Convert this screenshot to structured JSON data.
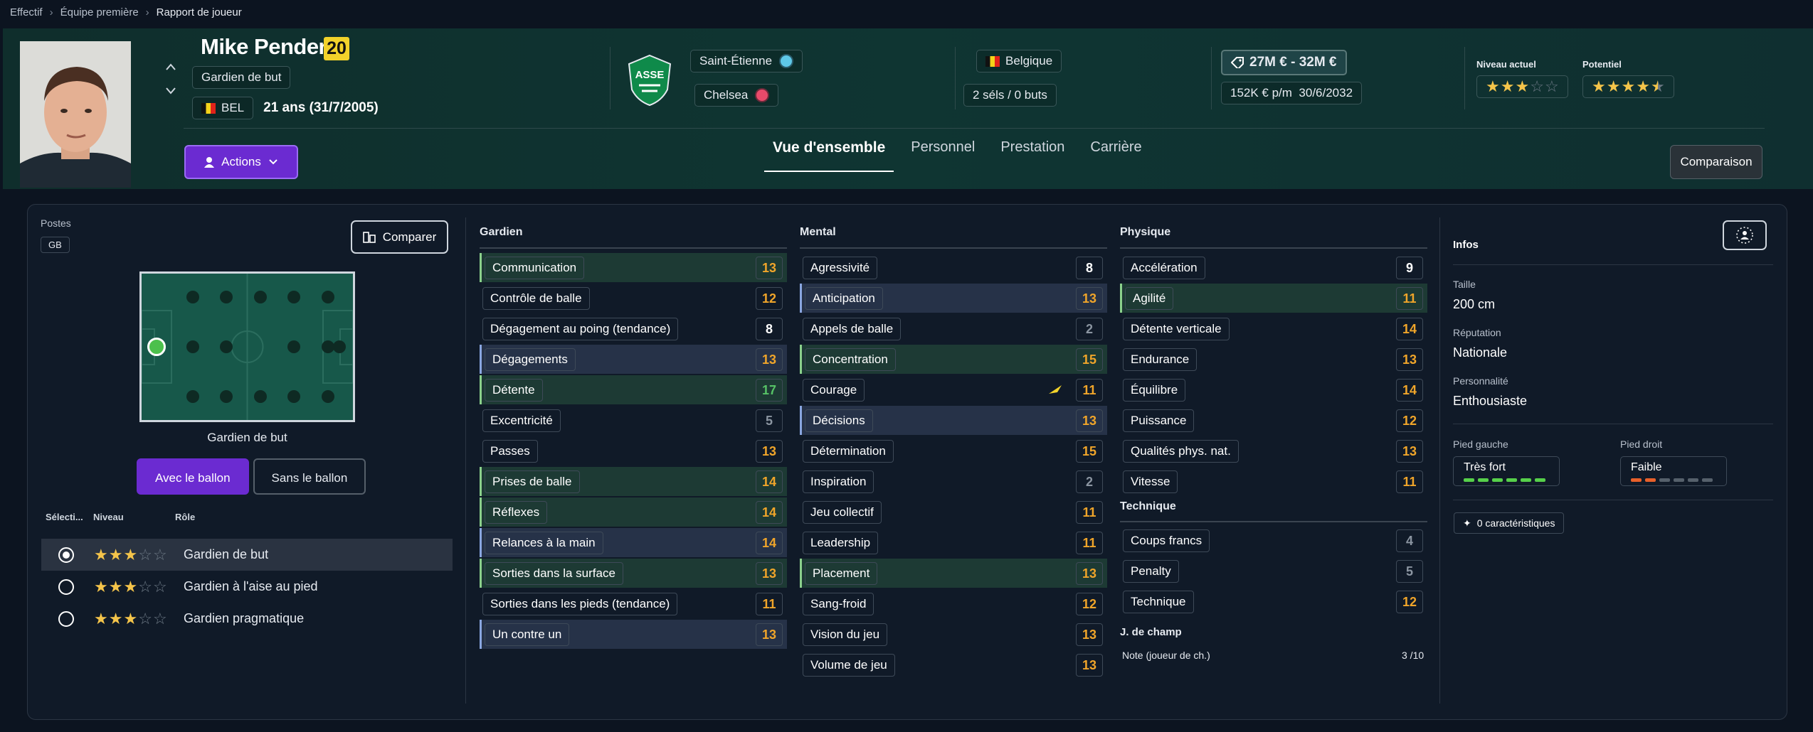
{
  "breadcrumb": [
    "Effectif",
    "Équipe première",
    "Rapport de joueur"
  ],
  "player": {
    "name": "Mike Penders",
    "number": "20",
    "position": "Gardien de but",
    "nationality_code": "BEL",
    "age_text": "21 ans (31/7/2005)",
    "club": "Saint-Étienne",
    "parent_club": "Chelsea",
    "country": "Belgique",
    "caps": "2 séls / 0 buts",
    "value": "27M € - 32M €",
    "wage": "152K € p/m",
    "contract_end": "30/6/2032",
    "current_level_label": "Niveau actuel",
    "current_level_stars": 3,
    "potential_label": "Potentiel",
    "potential_stars": 4.5
  },
  "actions_label": "Actions",
  "tabs": [
    "Vue d'ensemble",
    "Personnel",
    "Prestation",
    "Carrière"
  ],
  "active_tab": "Vue d'ensemble",
  "compare_header_label": "Comparaison",
  "left_panel": {
    "postes_label": "Postes",
    "poste_code": "GB",
    "compare_label": "Comparer",
    "pitch_caption": "Gardien de but",
    "toggle_on": "Avec le ballon",
    "toggle_off": "Sans le ballon",
    "role_headers": [
      "Sélecti...",
      "Niveau",
      "Rôle"
    ],
    "roles": [
      {
        "name": "Gardien de but",
        "stars": 3,
        "selected": true
      },
      {
        "name": "Gardien à l'aise au pied",
        "stars": 3,
        "selected": false
      },
      {
        "name": "Gardien pragmatique",
        "stars": 3,
        "selected": false
      }
    ]
  },
  "attributes": {
    "gardien": {
      "title": "Gardien",
      "items": [
        {
          "name": "Communication",
          "value": "13",
          "hl": "g",
          "color": "o"
        },
        {
          "name": "Contrôle de balle",
          "value": "12",
          "hl": "",
          "color": "o"
        },
        {
          "name": "Dégagement au poing (tendance)",
          "value": "8",
          "hl": "",
          "color": "w"
        },
        {
          "name": "Dégagements",
          "value": "13",
          "hl": "b",
          "color": "o"
        },
        {
          "name": "Détente",
          "value": "17",
          "hl": "g",
          "color": "g"
        },
        {
          "name": "Excentricité",
          "value": "5",
          "hl": "",
          "color": "d"
        },
        {
          "name": "Passes",
          "value": "13",
          "hl": "",
          "color": "o"
        },
        {
          "name": "Prises de balle",
          "value": "14",
          "hl": "g",
          "color": "o"
        },
        {
          "name": "Réflexes",
          "value": "14",
          "hl": "g",
          "color": "o"
        },
        {
          "name": "Relances à la main",
          "value": "14",
          "hl": "b",
          "color": "o"
        },
        {
          "name": "Sorties dans la surface",
          "value": "13",
          "hl": "g",
          "color": "o"
        },
        {
          "name": "Sorties dans les pieds (tendance)",
          "value": "11",
          "hl": "",
          "color": "o"
        },
        {
          "name": "Un contre un",
          "value": "13",
          "hl": "b",
          "color": "o"
        }
      ]
    },
    "mental": {
      "title": "Mental",
      "items": [
        {
          "name": "Agressivité",
          "value": "8",
          "hl": "",
          "color": "w"
        },
        {
          "name": "Anticipation",
          "value": "13",
          "hl": "b",
          "color": "o"
        },
        {
          "name": "Appels de balle",
          "value": "2",
          "hl": "",
          "color": "d"
        },
        {
          "name": "Concentration",
          "value": "15",
          "hl": "g",
          "color": "o"
        },
        {
          "name": "Courage",
          "value": "11",
          "hl": "",
          "color": "o"
        },
        {
          "name": "Décisions",
          "value": "13",
          "hl": "b",
          "color": "o"
        },
        {
          "name": "Détermination",
          "value": "15",
          "hl": "",
          "color": "o"
        },
        {
          "name": "Inspiration",
          "value": "2",
          "hl": "",
          "color": "d"
        },
        {
          "name": "Jeu collectif",
          "value": "11",
          "hl": "",
          "color": "o"
        },
        {
          "name": "Leadership",
          "value": "11",
          "hl": "",
          "color": "o"
        },
        {
          "name": "Placement",
          "value": "13",
          "hl": "g",
          "color": "o"
        },
        {
          "name": "Sang-froid",
          "value": "12",
          "hl": "",
          "color": "o"
        },
        {
          "name": "Vision du jeu",
          "value": "13",
          "hl": "",
          "color": "o"
        },
        {
          "name": "Volume de jeu",
          "value": "13",
          "hl": "",
          "color": "o"
        }
      ]
    },
    "physique": {
      "title": "Physique",
      "items": [
        {
          "name": "Accélération",
          "value": "9",
          "hl": "",
          "color": "w"
        },
        {
          "name": "Agilité",
          "value": "11",
          "hl": "g",
          "color": "o"
        },
        {
          "name": "Détente verticale",
          "value": "14",
          "hl": "",
          "color": "o"
        },
        {
          "name": "Endurance",
          "value": "13",
          "hl": "",
          "color": "o"
        },
        {
          "name": "Équilibre",
          "value": "14",
          "hl": "",
          "color": "o"
        },
        {
          "name": "Puissance",
          "value": "12",
          "hl": "",
          "color": "o"
        },
        {
          "name": "Qualités phys. nat.",
          "value": "13",
          "hl": "",
          "color": "o"
        },
        {
          "name": "Vitesse",
          "value": "11",
          "hl": "",
          "color": "o"
        }
      ]
    },
    "technique": {
      "title": "Technique",
      "items": [
        {
          "name": "Coups francs",
          "value": "4",
          "hl": "",
          "color": "d"
        },
        {
          "name": "Penalty",
          "value": "5",
          "hl": "",
          "color": "d"
        },
        {
          "name": "Technique",
          "value": "12",
          "hl": "",
          "color": "o"
        }
      ]
    },
    "field": {
      "title": "J. de champ",
      "note_label": "Note (joueur de ch.)",
      "note_value": "3 /10"
    }
  },
  "infos": {
    "title": "Infos",
    "height_label": "Taille",
    "height": "200 cm",
    "reputation_label": "Réputation",
    "reputation": "Nationale",
    "personality_label": "Personnalité",
    "personality": "Enthousiaste",
    "left_foot_label": "Pied gauche",
    "left_foot": "Très fort",
    "left_foot_level": 6,
    "right_foot_label": "Pied droit",
    "right_foot": "Faible",
    "right_foot_level": 2,
    "traits_label": "0 caractéristiques"
  }
}
